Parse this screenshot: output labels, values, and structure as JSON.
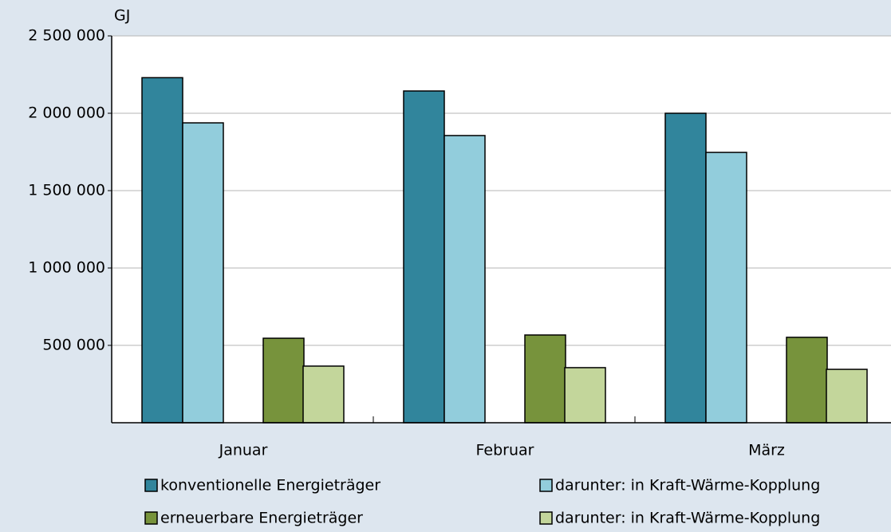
{
  "chart_data": {
    "type": "bar",
    "unit": "GJ",
    "categories": [
      "Januar",
      "Februar",
      "März"
    ],
    "series": [
      {
        "name": "konventionelle Energieträger",
        "color": "#31859c",
        "values": [
          2230000,
          2144000,
          2000000
        ]
      },
      {
        "name": "darunter: in Kraft-Wärme-Kopplung",
        "color": "#92cddc",
        "values": [
          1938000,
          1856000,
          1747000
        ]
      },
      {
        "name": "erneuerbare Energieträger",
        "color": "#77933c",
        "values": [
          546000,
          567000,
          552000
        ]
      },
      {
        "name": "darunter: in Kraft-Wärme-Kopplung",
        "color": "#c3d69b",
        "values": [
          366000,
          356000,
          345000
        ]
      }
    ],
    "ylim": [
      0,
      2500000
    ],
    "yticks": [
      {
        "value": 500000,
        "label": "500 000"
      },
      {
        "value": 1000000,
        "label": "1 000 000"
      },
      {
        "value": 1500000,
        "label": "1 500 000"
      },
      {
        "value": 2000000,
        "label": "2 000 000"
      },
      {
        "value": 2500000,
        "label": "2 500 000"
      }
    ],
    "grid": true
  }
}
